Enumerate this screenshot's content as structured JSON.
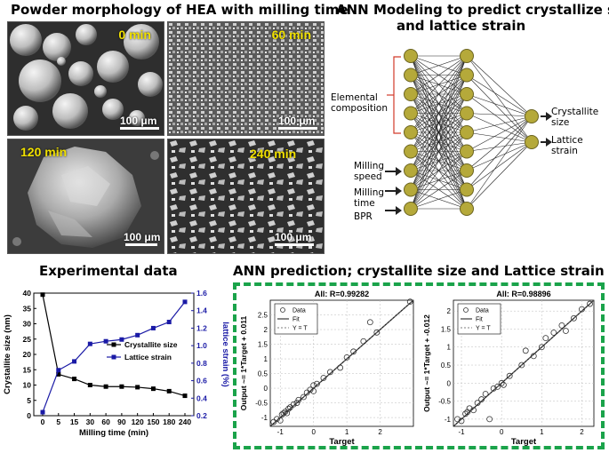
{
  "titles": {
    "morphology": "Powder morphology of HEA with milling time",
    "ann_model": "ANN Modeling to predict crystallize size and lattice strain",
    "ann_model_line1": "ANN Modeling to predict crystallize size",
    "ann_model_line2": "and lattice strain",
    "experimental": "Experimental data",
    "prediction": "ANN prediction; crystallite size and Lattice strain"
  },
  "sem_images": [
    {
      "label": "0 min",
      "scale": "100 μm"
    },
    {
      "label": "60 min",
      "scale": "100 μm"
    },
    {
      "label": "120 min",
      "scale": "100 μm"
    },
    {
      "label": "240 min",
      "scale": "100 μm"
    }
  ],
  "network": {
    "input_groups": {
      "elemental": "Elemental composition",
      "elemental_line1": "Elemental",
      "elemental_line2": "composition",
      "milling_speed": "Milling speed",
      "milling_speed_line1": "Milling",
      "milling_speed_line2": "speed",
      "milling_time": "Milling time",
      "milling_time_line1": "Milling",
      "milling_time_line2": "time",
      "bpr": "BPR"
    },
    "outputs": {
      "crystallite": "Crystallite size",
      "crystallite_line1": "Crystallite",
      "crystallite_line2": "size",
      "lattice": "Lattice strain",
      "lattice_line1": "Lattice",
      "lattice_line2": "strain"
    },
    "layers": [
      9,
      9,
      2
    ],
    "node_color": "#b5a93a"
  },
  "chart_data": [
    {
      "type": "line",
      "x": [
        0,
        5,
        15,
        30,
        60,
        90,
        120,
        150,
        180,
        240
      ],
      "categories": [
        "0",
        "5",
        "15",
        "30",
        "60",
        "90",
        "120",
        "150",
        "180",
        "240"
      ],
      "series": [
        {
          "name": "Crystallite size",
          "axis": "left",
          "color": "#000000",
          "values": [
            39.5,
            13.5,
            12,
            10,
            9.5,
            9.5,
            9.3,
            8.8,
            8,
            6.5
          ]
        },
        {
          "name": "Lattice strain",
          "axis": "right",
          "color": "#1a1aa6",
          "values": [
            0.24,
            0.72,
            0.82,
            1.02,
            1.05,
            1.07,
            1.12,
            1.2,
            1.27,
            1.5
          ]
        }
      ],
      "xlabel": "Milling time (min)",
      "ylabel": "Crystallite size (nm)",
      "y2label": "lattice strain (%)",
      "ylim": [
        0,
        40
      ],
      "y2lim": [
        0.2,
        1.6
      ],
      "yticks": [
        "0",
        "5",
        "10",
        "15",
        "20",
        "25",
        "30",
        "35",
        "40"
      ],
      "y2ticks": [
        "0.2",
        "0.4",
        "0.6",
        "0.8",
        "1.0",
        "1.2",
        "1.4",
        "1.6"
      ],
      "legend": "right"
    },
    {
      "type": "scatter",
      "title": "All: R=0.99282",
      "xlabel": "Target",
      "ylabel": "Output ~= 1*Target + 0.011",
      "xlim": [
        -1.3,
        3
      ],
      "ylim": [
        -1.3,
        3
      ],
      "xticks": [
        "-1",
        "0",
        "1",
        "2"
      ],
      "yticks": [
        "-1",
        "-0.5",
        "0",
        "0.5",
        "1",
        "1.5",
        "2",
        "2.5"
      ],
      "legend": [
        "Data",
        "Fit",
        "Y = T"
      ],
      "points": [
        [
          -1.2,
          -1.15
        ],
        [
          -1.1,
          -1.05
        ],
        [
          -1.0,
          -1.1
        ],
        [
          -0.95,
          -0.9
        ],
        [
          -0.9,
          -0.85
        ],
        [
          -0.85,
          -0.8
        ],
        [
          -0.8,
          -0.85
        ],
        [
          -0.75,
          -0.7
        ],
        [
          -0.7,
          -0.65
        ],
        [
          -0.6,
          -0.55
        ],
        [
          -0.5,
          -0.5
        ],
        [
          -0.45,
          -0.4
        ],
        [
          -0.3,
          -0.3
        ],
        [
          -0.2,
          -0.15
        ],
        [
          -0.1,
          -0.05
        ],
        [
          0,
          0.1
        ],
        [
          0,
          -0.1
        ],
        [
          0.1,
          0.15
        ],
        [
          0.3,
          0.35
        ],
        [
          0.5,
          0.55
        ],
        [
          0.8,
          0.7
        ],
        [
          1.0,
          1.05
        ],
        [
          1.2,
          1.25
        ],
        [
          1.5,
          1.6
        ],
        [
          1.7,
          2.25
        ],
        [
          1.9,
          1.9
        ],
        [
          2.9,
          2.95
        ]
      ]
    },
    {
      "type": "scatter",
      "title": "All: R=0.98896",
      "xlabel": "Target",
      "ylabel": "Output ~= 1*Target + -0.012",
      "xlim": [
        -1.2,
        2.3
      ],
      "ylim": [
        -1.2,
        2.3
      ],
      "xticks": [
        "-1",
        "0",
        "1",
        "2"
      ],
      "yticks": [
        "-1",
        "-0.5",
        "0",
        "0.5",
        "1",
        "1.5",
        "2"
      ],
      "legend": [
        "Data",
        "Fit",
        "Y = T"
      ],
      "points": [
        [
          -1.1,
          -1.0
        ],
        [
          -1.0,
          -1.05
        ],
        [
          -0.9,
          -0.85
        ],
        [
          -0.85,
          -0.8
        ],
        [
          -0.8,
          -0.7
        ],
        [
          -0.7,
          -0.75
        ],
        [
          -0.6,
          -0.55
        ],
        [
          -0.5,
          -0.45
        ],
        [
          -0.4,
          -0.3
        ],
        [
          -0.3,
          -1.0
        ],
        [
          -0.2,
          -0.15
        ],
        [
          -0.1,
          -0.1
        ],
        [
          0,
          0
        ],
        [
          0.05,
          -0.05
        ],
        [
          0.2,
          0.2
        ],
        [
          0.5,
          0.5
        ],
        [
          0.6,
          0.9
        ],
        [
          0.8,
          0.75
        ],
        [
          1.0,
          1.0
        ],
        [
          1.1,
          1.25
        ],
        [
          1.3,
          1.4
        ],
        [
          1.5,
          1.6
        ],
        [
          1.6,
          1.45
        ],
        [
          1.8,
          1.8
        ],
        [
          2.0,
          2.05
        ],
        [
          2.2,
          2.2
        ]
      ]
    }
  ]
}
